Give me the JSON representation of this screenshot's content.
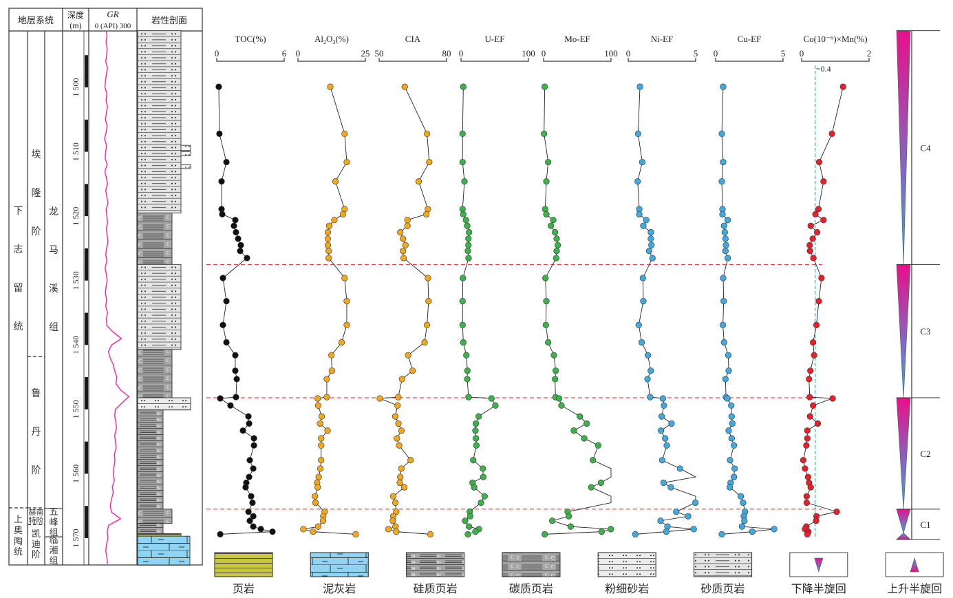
{
  "header": {
    "strat": "地层系统",
    "depth_line1": "深度",
    "depth_line2": "(m)",
    "gr_title": "GR",
    "gr_scale": "0 (API) 300",
    "litho": "岩性剖面"
  },
  "strat_units": {
    "series": [
      {
        "label": "下志留统",
        "top": 1491.2,
        "base": 1565.3
      },
      {
        "label": "上奥陶统",
        "top": 1565.3,
        "base": 1574.2
      }
    ],
    "stages": [
      {
        "label": "埃隆阶",
        "top": 1491.2,
        "base": 1541.8
      },
      {
        "label": "鲁丹阶",
        "top": 1541.8,
        "base": 1565.3
      },
      {
        "label": "赫南特阶",
        "top": 1565.3,
        "base": 1567.9
      },
      {
        "label": "凯迪阶",
        "top": 1567.9,
        "base": 1574.2
      }
    ],
    "formations": [
      {
        "label": "龙马溪组",
        "top": 1491.2,
        "base": 1565.4
      },
      {
        "label": "五峰组",
        "top": 1565.4,
        "base": 1569.8
      },
      {
        "label": "临湘组",
        "top": 1569.8,
        "base": 1574.2
      }
    ]
  },
  "depth_ticks": [
    {
      "depth": 1500,
      "label": "1 500"
    },
    {
      "depth": 1510,
      "label": "1 510"
    },
    {
      "depth": 1520,
      "label": "1 520"
    },
    {
      "depth": 1530,
      "label": "1 530"
    },
    {
      "depth": 1540,
      "label": "1 540"
    },
    {
      "depth": 1550,
      "label": "1 550"
    },
    {
      "depth": 1560,
      "label": "1 560"
    },
    {
      "depth": 1570,
      "label": "1 570"
    }
  ],
  "depth_range": [
    1491.2,
    1574.2
  ],
  "gr": {
    "range": [
      0,
      300
    ],
    "start_depth": 1491,
    "step": 1,
    "color": "#ff1fa0",
    "values": [
      105,
      108,
      102,
      110,
      106,
      100,
      112,
      104,
      98,
      95,
      108,
      102,
      112,
      104,
      98,
      110,
      102,
      92,
      105,
      100,
      96,
      110,
      94,
      104,
      112,
      100,
      108,
      115,
      102,
      108,
      112,
      104,
      110,
      115,
      106,
      100,
      108,
      96,
      104,
      110,
      102,
      98,
      106,
      100,
      112,
      104,
      108,
      150,
      205,
      140,
      118,
      130,
      150,
      160,
      175,
      168,
      200,
      255,
      210,
      165,
      160,
      168,
      172,
      160,
      165,
      170,
      158,
      162,
      155,
      150,
      158,
      145,
      150,
      138,
      130,
      140,
      200,
      120,
      110,
      115,
      105,
      100,
      108,
      112
    ]
  },
  "lithology": [
    {
      "type": "sandy_shale",
      "top": 1491.2,
      "base": 1519.5
    },
    {
      "type": "siltstone_lens",
      "top": 1509.0,
      "base": 1509.8
    },
    {
      "type": "siltstone_lens",
      "top": 1510.0,
      "base": 1510.6
    },
    {
      "type": "siltstone_lens",
      "top": 1512.0,
      "base": 1512.6
    },
    {
      "type": "carbonaceous_shale",
      "top": 1519.5,
      "base": 1527.5
    },
    {
      "type": "sandy_shale",
      "top": 1527.5,
      "base": 1540.7
    },
    {
      "type": "carbonaceous_shale",
      "top": 1540.7,
      "base": 1548.2
    },
    {
      "type": "siltstone",
      "top": 1548.2,
      "base": 1550.1
    },
    {
      "type": "siliceous_shale",
      "top": 1550.1,
      "base": 1565.5
    },
    {
      "type": "carbonaceous_shale",
      "top": 1565.5,
      "base": 1567.7
    },
    {
      "type": "siliceous_shale",
      "top": 1567.7,
      "base": 1569.3
    },
    {
      "type": "shale",
      "top": 1569.3,
      "base": 1569.7
    },
    {
      "type": "marl",
      "top": 1569.7,
      "base": 1574.2
    }
  ],
  "chart_data": {
    "type": "line",
    "y_axis": "depth (m)",
    "sample_depths": [
      1499.9,
      1507.2,
      1511.6,
      1514.6,
      1518.9,
      1519.7,
      1520.6,
      1521.5,
      1522.5,
      1523.5,
      1524.5,
      1525.4,
      1526.5,
      1529.6,
      1533.2,
      1536.9,
      1539.6,
      1541.6,
      1544.0,
      1545.3,
      1548.1,
      1548.3,
      1549.4,
      1551.1,
      1552.2,
      1553.3,
      1554.5,
      1555.6,
      1557.9,
      1559.2,
      1560.5,
      1561.4,
      1562.1,
      1563.5,
      1564.5,
      1565.9,
      1566.6,
      1567.3,
      1568.2,
      1568.6,
      1569.0,
      1569.4
    ],
    "series": [
      {
        "name": "TOC(%)",
        "sub": "",
        "range": [
          0,
          6
        ],
        "ticks": [
          "0",
          "6"
        ],
        "color": "#111111",
        "values": [
          0.18,
          0.24,
          0.86,
          0.43,
          0.43,
          0.49,
          1.65,
          1.53,
          1.71,
          1.9,
          2.14,
          2.08,
          2.69,
          0.55,
          0.86,
          0.55,
          0.86,
          1.65,
          1.65,
          1.78,
          1.71,
          0.31,
          1.22,
          2.82,
          2.88,
          2.33,
          3.31,
          3.31,
          2.94,
          3.25,
          2.88,
          2.63,
          2.57,
          3.06,
          3.18,
          2.82,
          3.25,
          2.94,
          3.25,
          3.92,
          4.96,
          0.31
        ]
      },
      {
        "name": "Al2O3(%)",
        "range": [
          0,
          25
        ],
        "ticks": [
          "0",
          "25"
        ],
        "color": "#f2a81d",
        "values": [
          12.0,
          17.3,
          18.1,
          13.9,
          17.3,
          16.7,
          13.5,
          11.6,
          11.1,
          11.1,
          11.1,
          11.4,
          11.4,
          17.3,
          18.1,
          18.1,
          16.2,
          12.4,
          12.6,
          10.7,
          10.7,
          7.3,
          7.5,
          8.8,
          8.2,
          11.0,
          8.6,
          8.6,
          8.6,
          8.3,
          7.7,
          7.1,
          7.3,
          6.3,
          6.5,
          9.9,
          9.4,
          9.3,
          7.5,
          2.0,
          5.6,
          21.4
        ]
      },
      {
        "name": "CIA",
        "range": [
          50,
          80
        ],
        "ticks": [
          "50",
          "80"
        ],
        "color": "#f2a81d",
        "values": [
          61.4,
          71.3,
          72.3,
          67.6,
          71.7,
          71.0,
          62.6,
          62.6,
          59.4,
          60.6,
          61.7,
          60.6,
          60.9,
          71.7,
          72.0,
          71.3,
          70.2,
          62.9,
          64.9,
          60.2,
          58.5,
          50.3,
          58.2,
          57.2,
          58.6,
          59.9,
          57.9,
          58.9,
          64.0,
          59.9,
          59.4,
          59.2,
          61.2,
          56.3,
          57.2,
          57.6,
          56.3,
          56.1,
          57.3,
          54.1,
          57.6,
          72.8
        ]
      },
      {
        "name": "U-EF",
        "range": [
          0,
          100
        ],
        "ticks": [
          "0",
          "100"
        ],
        "color": "#3cb34a",
        "values": [
          3.4,
          2.3,
          2.3,
          5.1,
          2.3,
          3.4,
          7.4,
          9.2,
          11.9,
          10.9,
          10.9,
          10.2,
          11.2,
          2.8,
          2.3,
          2.3,
          3.4,
          7.9,
          9.5,
          9.2,
          11.2,
          45.2,
          51.0,
          26.2,
          22.1,
          21.4,
          22.1,
          22.8,
          18.1,
          32.3,
          33.0,
          17.0,
          19.4,
          35.0,
          29.6,
          12.9,
          13.6,
          6.1,
          11.9,
          26.5,
          21.4,
          10.2
        ]
      },
      {
        "name": "Mo-EF",
        "range": [
          0,
          100
        ],
        "ticks": [
          "0",
          "100"
        ],
        "color": "#3cb34a",
        "values": [
          1.7,
          0.7,
          6.8,
          4.1,
          2.4,
          4.1,
          14.3,
          10.9,
          17.0,
          19.4,
          21.1,
          19.4,
          18.7,
          2.7,
          4.1,
          3.4,
          6.8,
          15.3,
          18.0,
          17.0,
          17.7,
          23.1,
          26.5,
          53.7,
          63.9,
          44.9,
          60.2,
          81.0,
          73.1,
          100,
          100,
          85.0,
          70.7,
          100,
          100,
          35.7,
          37.4,
          12.9,
          40.1,
          99.7,
          86.1,
          1.7
        ]
      },
      {
        "name": "Ni-EF",
        "range": [
          0,
          5
        ],
        "ticks": [
          "0",
          "5"
        ],
        "color": "#3fa9e0",
        "values": [
          0.87,
          0.73,
          1.04,
          0.7,
          0.82,
          0.82,
          1.34,
          1.12,
          1.68,
          1.68,
          1.72,
          1.55,
          1.8,
          1.09,
          1.12,
          0.78,
          1.0,
          1.46,
          1.67,
          1.43,
          1.63,
          2.57,
          2.65,
          2.48,
          3.21,
          2.43,
          2.74,
          2.86,
          2.52,
          3.84,
          5.07,
          2.62,
          3.16,
          5.07,
          4.98,
          3.56,
          4.44,
          2.4,
          2.91,
          4.86,
          2.82,
          0.53
        ]
      },
      {
        "name": "Cu-EF",
        "range": [
          0,
          5
        ],
        "ticks": [
          "0",
          "5"
        ],
        "color": "#3fa9e0",
        "values": [
          0.56,
          0.46,
          0.56,
          0.46,
          0.51,
          0.51,
          0.9,
          0.63,
          0.68,
          0.73,
          0.77,
          0.73,
          0.9,
          0.56,
          0.6,
          0.54,
          0.63,
          0.94,
          0.97,
          0.73,
          0.77,
          0.88,
          1.16,
          1.19,
          1.24,
          0.97,
          1.19,
          1.36,
          1.07,
          1.41,
          1.36,
          1.11,
          1.05,
          1.87,
          2.04,
          2.18,
          2.09,
          2.13,
          1.96,
          4.34,
          2.72,
          0.46
        ]
      },
      {
        "name": "Co(10⁻⁶)×Mn(%)",
        "range": [
          0,
          2
        ],
        "ticks": [
          "0",
          "2"
        ],
        "color": "#e8202a",
        "reference_line": {
          "value": 0.4,
          "label": "0.4",
          "color": "#1fb0f0"
        },
        "values": [
          1.23,
          0.9,
          0.52,
          0.65,
          0.5,
          0.41,
          0.65,
          0.27,
          0.46,
          0.33,
          0.24,
          0.25,
          0.35,
          0.59,
          0.51,
          0.44,
          0.34,
          0.37,
          0.26,
          0.22,
          0.24,
          0.92,
          0.34,
          0.25,
          0.48,
          0.17,
          0.17,
          0.14,
          0.05,
          0.1,
          0.19,
          0.22,
          0.27,
          0.15,
          0.15,
          1.04,
          0.44,
          0.43,
          0.14,
          0.1,
          0.2,
          0.17
        ]
      }
    ],
    "boundaries": [
      1527.5,
      1548.2,
      1565.5
    ],
    "boundary_color": "#ff2020"
  },
  "cycles": [
    {
      "label": "C4",
      "top": 1491.2,
      "base": 1527.5,
      "parts": [
        {
          "kind": "falling",
          "top": 1491.2,
          "base": 1527.5
        }
      ]
    },
    {
      "label": "C3",
      "top": 1527.5,
      "base": 1548.2,
      "parts": [
        {
          "kind": "falling",
          "top": 1527.5,
          "base": 1548.2
        }
      ]
    },
    {
      "label": "C2",
      "top": 1548.2,
      "base": 1565.5,
      "parts": [
        {
          "kind": "falling",
          "top": 1548.2,
          "base": 1565.5
        }
      ]
    },
    {
      "label": "C1",
      "top": 1565.5,
      "base": 1570.2,
      "parts": [
        {
          "kind": "falling",
          "top": 1565.5,
          "base": 1569.2
        },
        {
          "kind": "rising",
          "top": 1569.2,
          "base": 1570.2
        }
      ]
    }
  ],
  "cycle_colors": {
    "magenta": "#e8108a",
    "blue": "#3aa6e6"
  },
  "legend": [
    {
      "key": "shale",
      "label": "页岩"
    },
    {
      "key": "marl",
      "label": "泥灰岩"
    },
    {
      "key": "siliceous_shale",
      "label": "硅质页岩"
    },
    {
      "key": "carbonaceous_shale",
      "label": "碳质页岩"
    },
    {
      "key": "siltstone",
      "label": "粉细砂岩"
    },
    {
      "key": "sandy_shale",
      "label": "砂质页岩"
    },
    {
      "key": "falling",
      "label": "下降半旋回"
    },
    {
      "key": "rising",
      "label": "上升半旋回"
    }
  ]
}
